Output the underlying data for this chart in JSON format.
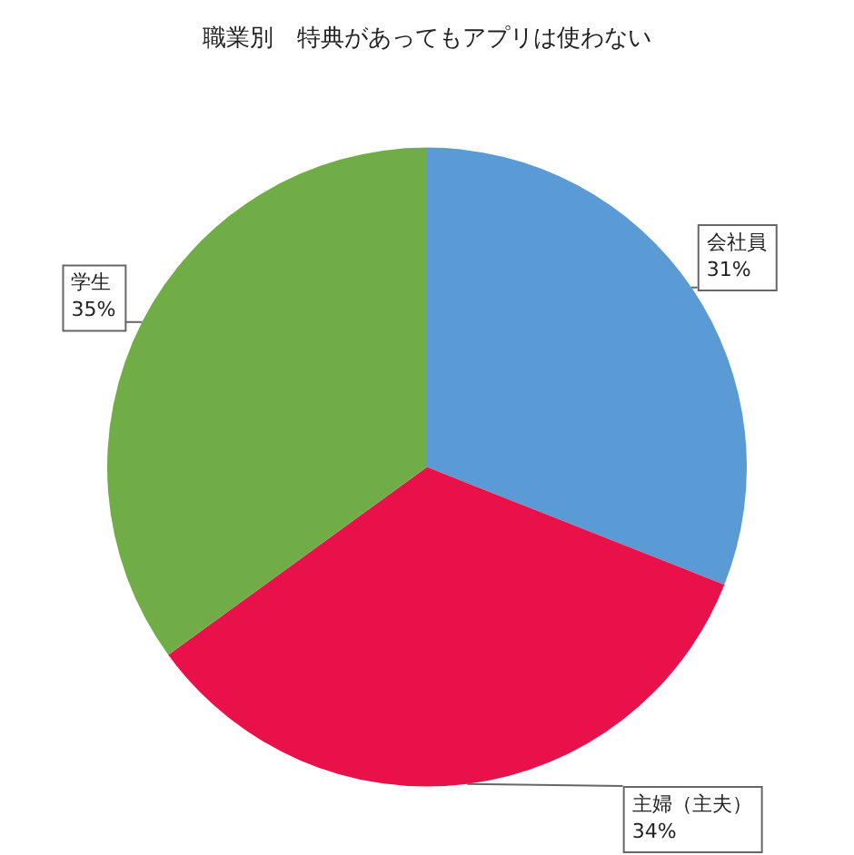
{
  "chart_data": {
    "type": "pie",
    "title": "職業別　特典があってもアプリは使わない",
    "categories": [
      "会社員",
      "主婦（主夫）",
      "学生"
    ],
    "values": [
      31,
      34,
      35
    ],
    "value_labels": [
      "31%",
      "34%",
      "35%"
    ],
    "colors": [
      "#5b9bd5",
      "#e8114a",
      "#70ad47"
    ],
    "legend": false
  }
}
